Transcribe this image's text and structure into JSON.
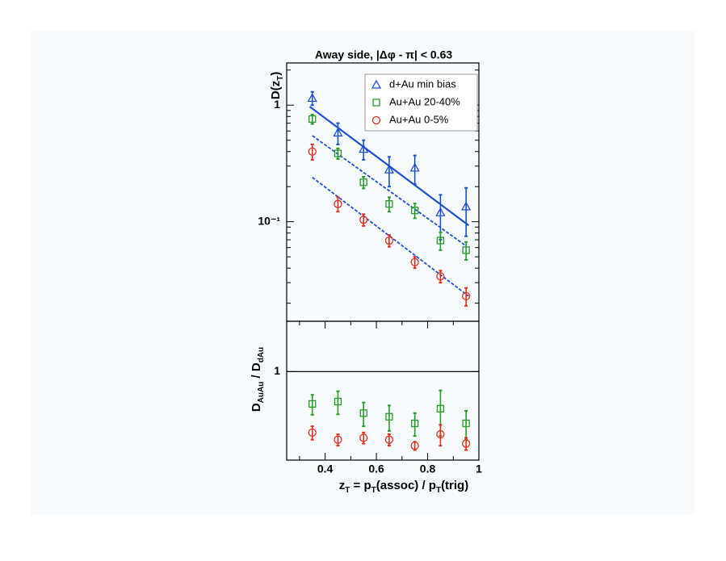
{
  "chart_data": [
    {
      "type": "scatter",
      "title": "Away side, |Δφ - π| < 0.63",
      "ylabel": [
        {
          "text": "D(z"
        },
        {
          "text": "T",
          "sub": true
        },
        {
          "text": ")"
        }
      ],
      "log_y": true,
      "xlim": [
        0.25,
        1.0
      ],
      "ylim": [
        0.014,
        2.3
      ],
      "yticks": [
        {
          "value": 0.1,
          "label": "10⁻¹"
        },
        1
      ],
      "yminor": [
        0.02,
        0.03,
        0.04,
        0.05,
        0.06,
        0.07,
        0.08,
        0.09,
        0.2,
        0.3,
        0.4,
        0.5,
        0.6,
        0.7,
        0.8,
        0.9,
        2
      ],
      "legend": "upper right",
      "series": [
        {
          "name": "d+Au min bias",
          "marker": "triangle",
          "color": "#1f4fd8",
          "x": [
            0.35,
            0.45,
            0.55,
            0.65,
            0.75,
            0.85,
            0.95
          ],
          "values": [
            1.15,
            0.58,
            0.42,
            0.28,
            0.29,
            0.12,
            0.135
          ],
          "errors": [
            0.15,
            0.12,
            0.08,
            0.08,
            0.08,
            0.05,
            0.06
          ]
        },
        {
          "name": "Au+Au 20-40%",
          "marker": "square",
          "color": "#2a9a2a",
          "x": [
            0.35,
            0.45,
            0.55,
            0.65,
            0.75,
            0.85,
            0.95
          ],
          "values": [
            0.76,
            0.385,
            0.218,
            0.142,
            0.125,
            0.069,
            0.057
          ],
          "errors": [
            0.07,
            0.04,
            0.025,
            0.02,
            0.018,
            0.012,
            0.01
          ]
        },
        {
          "name": "Au+Au 0-5%",
          "marker": "circle",
          "color": "#e03020",
          "x": [
            0.35,
            0.45,
            0.55,
            0.65,
            0.75,
            0.85,
            0.95
          ],
          "values": [
            0.4,
            0.142,
            0.104,
            0.069,
            0.045,
            0.034,
            0.023
          ],
          "errors": [
            0.06,
            0.02,
            0.012,
            0.008,
            0.005,
            0.004,
            0.004
          ]
        }
      ],
      "fits": [
        {
          "style": "solid",
          "color": "#1e50d8",
          "x": [
            0.34,
            0.96
          ],
          "values": [
            0.97,
            0.093
          ]
        },
        {
          "style": "dashed",
          "color": "#1e50d8",
          "x": [
            0.35,
            0.95
          ],
          "values": [
            0.547,
            0.062
          ]
        },
        {
          "style": "dashed",
          "color": "#1e50d8",
          "x": [
            0.35,
            0.96
          ],
          "values": [
            0.24,
            0.023
          ]
        }
      ]
    },
    {
      "type": "scatter",
      "ylabel": [
        {
          "text": "D"
        },
        {
          "text": "AuAu",
          "sub": true
        },
        {
          "text": " / D"
        },
        {
          "text": "dAu",
          "sub": true
        }
      ],
      "xlabel": [
        {
          "text": "z"
        },
        {
          "text": "T",
          "sub": true
        },
        {
          "text": " = p"
        },
        {
          "text": "T",
          "sub": true
        },
        {
          "text": "(assoc) / p"
        },
        {
          "text": "T",
          "sub": true
        },
        {
          "text": "(trig)"
        }
      ],
      "log_y": true,
      "xlim": [
        0.25,
        1.0
      ],
      "ylim": [
        0.2,
        2.5
      ],
      "xticks": [
        0.4,
        0.6,
        0.8,
        1
      ],
      "xminor": [
        0.3,
        0.5,
        0.7,
        0.9
      ],
      "yticks": [
        1
      ],
      "hline": 1,
      "series": [
        {
          "marker": "square",
          "color": "#2a9a2a",
          "x": [
            0.35,
            0.45,
            0.55,
            0.65,
            0.75,
            0.85,
            0.95
          ],
          "values": [
            0.556,
            0.58,
            0.47,
            0.44,
            0.39,
            0.51,
            0.39
          ],
          "errors": [
            0.1,
            0.12,
            0.1,
            0.1,
            0.08,
            0.2,
            0.1
          ]
        },
        {
          "marker": "circle",
          "color": "#e03020",
          "x": [
            0.35,
            0.45,
            0.55,
            0.65,
            0.75,
            0.85,
            0.95
          ],
          "values": [
            0.33,
            0.29,
            0.3,
            0.29,
            0.26,
            0.32,
            0.27
          ],
          "errors": [
            0.04,
            0.03,
            0.03,
            0.03,
            0.02,
            0.06,
            0.03
          ]
        }
      ]
    }
  ]
}
